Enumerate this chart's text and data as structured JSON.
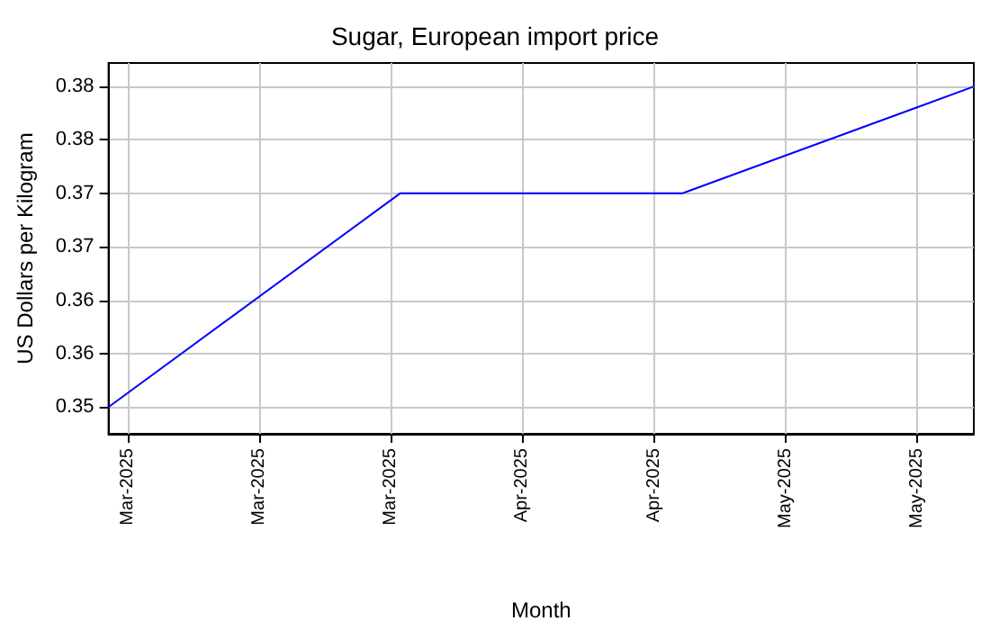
{
  "chart_data": {
    "type": "line",
    "title": "Sugar, European import price",
    "xlabel": "Month",
    "ylabel": "US Dollars per Kilogram",
    "x": [
      "2025-03-01",
      "2025-04-01",
      "2025-05-01",
      "2025-06-01"
    ],
    "series": [
      {
        "color": "#0000ff",
        "values": [
          0.35,
          0.37,
          0.37,
          0.38
        ]
      }
    ],
    "xlim": [
      "2025-03-01",
      "2025-06-01"
    ],
    "xticks": [
      {
        "value": "2025-03-03",
        "label": "Mar-2025"
      },
      {
        "value": "2025-03-17",
        "label": "Mar-2025"
      },
      {
        "value": "2025-03-31",
        "label": "Mar-2025"
      },
      {
        "value": "2025-04-14",
        "label": "Apr-2025"
      },
      {
        "value": "2025-04-28",
        "label": "Apr-2025"
      },
      {
        "value": "2025-05-12",
        "label": "May-2025"
      },
      {
        "value": "2025-05-26",
        "label": "May-2025"
      }
    ],
    "ylim": [
      0.3475,
      0.3822
    ],
    "yticks": [
      {
        "value": 0.35,
        "label": "0.35"
      },
      {
        "value": 0.355,
        "label": "0.36"
      },
      {
        "value": 0.36,
        "label": "0.36"
      },
      {
        "value": 0.365,
        "label": "0.37"
      },
      {
        "value": 0.37,
        "label": "0.37"
      },
      {
        "value": 0.375,
        "label": "0.38"
      },
      {
        "value": 0.38,
        "label": "0.38"
      }
    ],
    "grid": true,
    "marker": "none",
    "line_style": "solid"
  }
}
